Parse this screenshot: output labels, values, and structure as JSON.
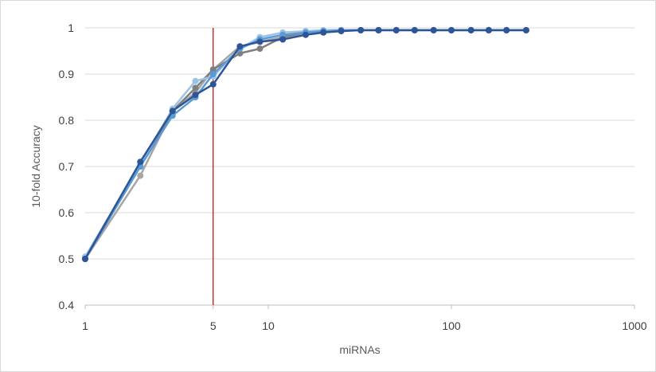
{
  "chart_data": {
    "type": "line",
    "title": "",
    "xlabel": "miRNAs",
    "ylabel": "10-fold Accuracy",
    "x_scale": "log10",
    "xlim": [
      1,
      1000
    ],
    "ylim": [
      0.4,
      1.0
    ],
    "x_ticks": [
      {
        "value": 1,
        "label": "1"
      },
      {
        "value": 5,
        "label": "5"
      },
      {
        "value": 10,
        "label": "10"
      },
      {
        "value": 100,
        "label": "100"
      },
      {
        "value": 1000,
        "label": "1000"
      }
    ],
    "y_ticks": [
      {
        "value": 0.4,
        "label": "0.4"
      },
      {
        "value": 0.5,
        "label": "0.5"
      },
      {
        "value": 0.6,
        "label": "0.6"
      },
      {
        "value": 0.7,
        "label": "0.7"
      },
      {
        "value": 0.8,
        "label": "0.8"
      },
      {
        "value": 0.9,
        "label": "0.9"
      },
      {
        "value": 1.0,
        "label": "1"
      }
    ],
    "grid": "horizontal",
    "legend": "none",
    "reference_line": {
      "x": 5,
      "color": "#c00000"
    },
    "series": [
      {
        "color": "#a6a6a6",
        "points": [
          [
            1,
            0.5
          ],
          [
            2,
            0.68
          ],
          [
            3,
            0.82
          ],
          [
            4,
            0.86
          ],
          [
            5,
            0.91
          ],
          [
            7,
            0.96
          ],
          [
            9,
            0.97
          ],
          [
            12,
            0.98
          ],
          [
            16,
            0.99
          ],
          [
            20,
            0.993
          ],
          [
            25,
            0.995
          ],
          [
            32,
            0.995
          ],
          [
            40,
            0.995
          ],
          [
            50,
            0.995
          ],
          [
            63,
            0.995
          ],
          [
            80,
            0.995
          ],
          [
            100,
            0.995
          ],
          [
            128,
            0.995
          ],
          [
            160,
            0.995
          ],
          [
            200,
            0.995
          ],
          [
            256,
            0.995
          ]
        ]
      },
      {
        "color": "#7f7f7f",
        "points": [
          [
            1,
            0.5
          ],
          [
            2,
            0.7
          ],
          [
            3,
            0.82
          ],
          [
            4,
            0.87
          ],
          [
            5,
            0.91
          ],
          [
            7,
            0.945
          ],
          [
            9,
            0.955
          ],
          [
            12,
            0.98
          ],
          [
            16,
            0.99
          ],
          [
            20,
            0.993
          ],
          [
            25,
            0.995
          ],
          [
            32,
            0.995
          ],
          [
            40,
            0.995
          ],
          [
            50,
            0.995
          ],
          [
            63,
            0.995
          ],
          [
            80,
            0.995
          ],
          [
            100,
            0.995
          ],
          [
            128,
            0.995
          ],
          [
            160,
            0.995
          ],
          [
            200,
            0.995
          ],
          [
            256,
            0.995
          ]
        ]
      },
      {
        "color": "#9dc3e6",
        "points": [
          [
            1,
            0.505
          ],
          [
            2,
            0.705
          ],
          [
            3,
            0.825
          ],
          [
            4,
            0.885
          ],
          [
            5,
            0.895
          ],
          [
            7,
            0.955
          ],
          [
            9,
            0.98
          ],
          [
            12,
            0.99
          ],
          [
            16,
            0.993
          ],
          [
            20,
            0.995
          ],
          [
            25,
            0.995
          ],
          [
            32,
            0.995
          ],
          [
            40,
            0.995
          ],
          [
            50,
            0.995
          ],
          [
            63,
            0.995
          ],
          [
            80,
            0.995
          ],
          [
            100,
            0.995
          ],
          [
            128,
            0.995
          ],
          [
            160,
            0.995
          ],
          [
            200,
            0.995
          ],
          [
            256,
            0.995
          ]
        ]
      },
      {
        "color": "#5b9bd5",
        "points": [
          [
            1,
            0.5
          ],
          [
            2,
            0.7
          ],
          [
            3,
            0.81
          ],
          [
            4,
            0.85
          ],
          [
            5,
            0.9
          ],
          [
            7,
            0.955
          ],
          [
            9,
            0.975
          ],
          [
            12,
            0.985
          ],
          [
            16,
            0.99
          ],
          [
            20,
            0.993
          ],
          [
            25,
            0.995
          ],
          [
            32,
            0.995
          ],
          [
            40,
            0.995
          ],
          [
            50,
            0.995
          ],
          [
            63,
            0.995
          ],
          [
            80,
            0.995
          ],
          [
            100,
            0.995
          ],
          [
            128,
            0.995
          ],
          [
            160,
            0.995
          ],
          [
            200,
            0.995
          ],
          [
            256,
            0.995
          ]
        ]
      },
      {
        "color": "#2e5597",
        "points": [
          [
            1,
            0.5
          ],
          [
            2,
            0.71
          ],
          [
            3,
            0.82
          ],
          [
            4,
            0.855
          ],
          [
            5,
            0.878
          ],
          [
            7,
            0.96
          ],
          [
            9,
            0.97
          ],
          [
            12,
            0.975
          ],
          [
            16,
            0.985
          ],
          [
            20,
            0.99
          ],
          [
            25,
            0.993
          ],
          [
            32,
            0.995
          ],
          [
            40,
            0.995
          ],
          [
            50,
            0.995
          ],
          [
            63,
            0.995
          ],
          [
            80,
            0.995
          ],
          [
            100,
            0.995
          ],
          [
            128,
            0.995
          ],
          [
            160,
            0.995
          ],
          [
            200,
            0.995
          ],
          [
            256,
            0.995
          ]
        ]
      }
    ]
  }
}
